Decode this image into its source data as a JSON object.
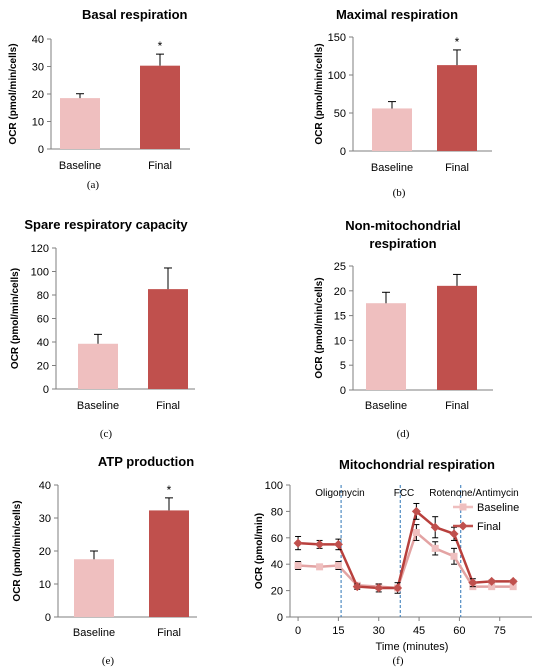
{
  "colors": {
    "baseline": "#efbfbf",
    "final": "#c0504d",
    "axis": "#7f7f7f",
    "vline": "#2e75b6"
  },
  "chart_data": [
    {
      "type": "bar",
      "caption": "(a)",
      "title": "Basal respiration",
      "ylabel": "OCR (pmol/min/cells)",
      "categories": [
        "Baseline",
        "Final"
      ],
      "values": [
        18.5,
        30.3
      ],
      "errors": [
        1.6,
        4.2
      ],
      "significant": [
        "",
        "*"
      ],
      "ylim": [
        0,
        40
      ],
      "yticks": [
        0,
        10,
        20,
        30,
        40
      ]
    },
    {
      "type": "bar",
      "caption": "(b)",
      "title": "Maximal respiration",
      "ylabel": "OCR (pmol/min/cells)",
      "categories": [
        "Baseline",
        "Final"
      ],
      "values": [
        56,
        113
      ],
      "errors": [
        9,
        20
      ],
      "significant": [
        "",
        "*"
      ],
      "ylim": [
        0,
        150
      ],
      "yticks": [
        0,
        50,
        100,
        150
      ]
    },
    {
      "type": "bar",
      "caption": "(c)",
      "title": "Spare respiratory capacity",
      "ylabel": "OCR (pmol/min/cells)",
      "categories": [
        "Baseline",
        "Final"
      ],
      "values": [
        38.5,
        85
      ],
      "errors": [
        8,
        18
      ],
      "significant": [
        "",
        ""
      ],
      "ylim": [
        0,
        120
      ],
      "yticks": [
        0,
        20,
        40,
        60,
        80,
        100,
        120
      ]
    },
    {
      "type": "bar",
      "caption": "(d)",
      "title": "Non-mitochondrial respiration",
      "title_lines": [
        "Non-mitochondrial",
        "respiration"
      ],
      "ylabel": "OCR (pmol/min/cells)",
      "categories": [
        "Baseline",
        "Final"
      ],
      "values": [
        17.5,
        21
      ],
      "errors": [
        2.2,
        2.3
      ],
      "significant": [
        "",
        ""
      ],
      "ylim": [
        0,
        25
      ],
      "yticks": [
        0,
        5,
        10,
        15,
        20,
        25
      ]
    },
    {
      "type": "bar",
      "caption": "(e)",
      "title": "ATP production",
      "ylabel": "OCR (pmol/min/cells)",
      "categories": [
        "Baseline",
        "Final"
      ],
      "values": [
        17.5,
        32.3
      ],
      "errors": [
        2.5,
        3.8
      ],
      "significant": [
        "",
        "*"
      ],
      "ylim": [
        0,
        40
      ],
      "yticks": [
        0,
        10,
        20,
        30,
        40
      ]
    },
    {
      "type": "line",
      "caption": "(f)",
      "title": "Mitochondrial respiration",
      "xlabel": "Time (minutes)",
      "ylabel": "OCR (pmol/min)",
      "xlim": [
        -3,
        87
      ],
      "ylim": [
        0,
        100
      ],
      "xticks": [
        0,
        15,
        30,
        45,
        60,
        75
      ],
      "yticks": [
        0,
        20,
        40,
        60,
        80,
        100
      ],
      "x": [
        0,
        8,
        15,
        22,
        30,
        37,
        44,
        51,
        58,
        65,
        72,
        80
      ],
      "series": [
        {
          "name": "Baseline",
          "values": [
            39,
            38,
            39,
            24,
            23,
            22,
            64,
            52,
            46,
            23,
            23,
            23
          ],
          "errors": [
            3,
            2,
            3,
            2,
            2,
            2,
            6,
            5,
            6,
            2,
            2,
            2
          ]
        },
        {
          "name": "Final",
          "values": [
            56,
            55,
            55,
            23,
            22,
            22,
            80,
            68,
            63,
            26,
            27,
            27
          ],
          "errors": [
            5,
            3,
            4,
            2,
            3,
            4,
            6,
            8,
            5,
            3,
            1,
            1
          ]
        }
      ],
      "injections": [
        {
          "label": "Oligomycin",
          "x": 16
        },
        {
          "label": "FCC",
          "x": 38
        },
        {
          "label": "Rotenone/Antimycin",
          "x": 60.5
        }
      ],
      "legend": "right"
    }
  ]
}
